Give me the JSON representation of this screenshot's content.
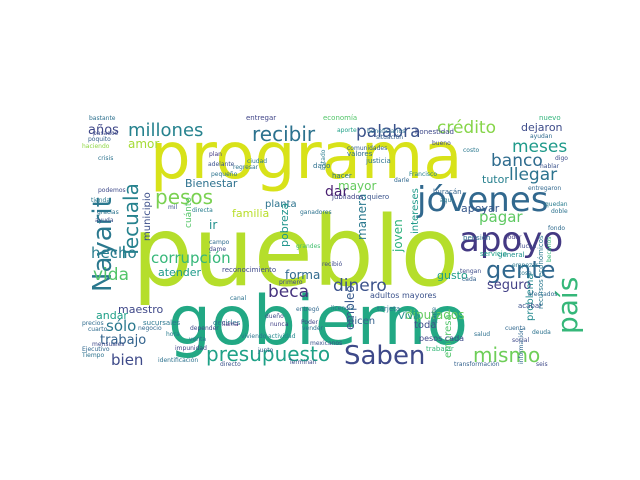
{
  "words": [
    {
      "text": "pueblo",
      "color": "#b5de2b"
    },
    {
      "text": "gobierno",
      "color": "#22a884"
    },
    {
      "text": "programa",
      "color": "#d8e219"
    },
    {
      "text": "jóvenes",
      "color": "#31688e"
    },
    {
      "text": "apoyo",
      "color": "#443983"
    },
    {
      "text": "país",
      "color": "#35b779"
    },
    {
      "text": "Nayarit",
      "color": "#2a788e"
    },
    {
      "text": "Tecuala",
      "color": "#26828e"
    },
    {
      "text": "gente",
      "color": "#31688e"
    },
    {
      "text": "Saben",
      "color": "#3e4989"
    },
    {
      "text": "presupuesto",
      "color": "#1fa187"
    },
    {
      "text": "mismo",
      "color": "#6ece58"
    },
    {
      "text": "pesos",
      "color": "#7ad151"
    },
    {
      "text": "millones",
      "color": "#26828e"
    },
    {
      "text": "recibir",
      "color": "#2c728e"
    },
    {
      "text": "palabra",
      "color": "#3b528b"
    },
    {
      "text": "crédito",
      "color": "#86d549"
    },
    {
      "text": "meses",
      "color": "#1f9a8a"
    },
    {
      "text": "banco",
      "color": "#2f6c8e"
    },
    {
      "text": "llegar",
      "color": "#2c738e"
    },
    {
      "text": "vida",
      "color": "#52c569"
    },
    {
      "text": "hecho",
      "color": "#287d8e"
    },
    {
      "text": "corrupción",
      "color": "#35b779"
    },
    {
      "text": "dinero",
      "color": "#3b528b"
    },
    {
      "text": "beca",
      "color": "#46337e"
    },
    {
      "text": "bien",
      "color": "#3e4a89"
    },
    {
      "text": "sólo",
      "color": "#2a788e"
    },
    {
      "text": "trabajo",
      "color": "#33638d"
    },
    {
      "text": "dar",
      "color": "#481f70"
    },
    {
      "text": "mayor",
      "color": "#65cb5e"
    },
    {
      "text": "pagar",
      "color": "#5ec962"
    },
    {
      "text": "seguro",
      "color": "#424086"
    },
    {
      "text": "empleo",
      "color": "#38598c"
    },
    {
      "text": "joven",
      "color": "#2db27d"
    },
    {
      "text": "diputados",
      "color": "#63cb5f"
    },
    {
      "text": "años",
      "color": "#3f4788"
    },
    {
      "text": "amor",
      "color": "#a5db36"
    },
    {
      "text": "forma",
      "color": "#30698e"
    },
    {
      "text": "dejaron",
      "color": "#3e4c8a"
    },
    {
      "text": "tutor",
      "color": "#27808e"
    },
    {
      "text": "Bienestar",
      "color": "#2d718e"
    },
    {
      "text": "municipio",
      "color": "#3c4f8a"
    },
    {
      "text": "planta",
      "color": "#2c738e"
    },
    {
      "text": "familia",
      "color": "#b8de29"
    },
    {
      "text": "ir",
      "color": "#21918c"
    },
    {
      "text": "pobreza",
      "color": "#1f948c"
    },
    {
      "text": "atender",
      "color": "#1e9b8a"
    },
    {
      "text": "andar",
      "color": "#1fa088"
    },
    {
      "text": "maestro",
      "color": "#3f4889"
    },
    {
      "text": "gusto",
      "color": "#1f9e89"
    },
    {
      "text": "intereses",
      "color": "#1f9a8a"
    },
    {
      "text": "empresa",
      "color": "#50c46a"
    },
    {
      "text": "manera",
      "color": "#2a788e"
    },
    {
      "text": "apoyar",
      "color": "#38598c"
    },
    {
      "text": "dicen",
      "color": "#34618d"
    },
    {
      "text": "toda",
      "color": "#3d4d8a"
    },
    {
      "text": "Viva",
      "color": "#21918c"
    },
    {
      "text": "problema",
      "color": "#23898e"
    },
    {
      "text": "cuánto",
      "color": "#54c568"
    },
    {
      "text": "adultos mayores",
      "color": "#3b528b"
    },
    {
      "text": "pesos cada",
      "color": "#3e4989"
    },
    {
      "text": "dado",
      "color": "#2d708e"
    },
    {
      "text": "jubilados",
      "color": "#414487"
    },
    {
      "text": "hacer",
      "color": "#2c738e"
    },
    {
      "text": "quiero",
      "color": "#3a538b"
    },
    {
      "text": "huracán",
      "color": "#33638d"
    },
    {
      "text": "pensión",
      "color": "#2f6c8e"
    },
    {
      "text": "servicio",
      "color": "#1fa088"
    },
    {
      "text": "general",
      "color": "#21918c"
    },
    {
      "text": "acabar",
      "color": "#3b528b"
    },
    {
      "text": "entregar",
      "color": "#404588"
    },
    {
      "text": "economía",
      "color": "#52c569"
    },
    {
      "text": "nuevo",
      "color": "#31b57b"
    },
    {
      "text": "ayudan",
      "color": "#2f6b8e"
    },
    {
      "text": "honestidad",
      "color": "#3e4989"
    },
    {
      "text": "beneficiarios",
      "color": "#2d708e"
    },
    {
      "text": "aporte",
      "color": "#1fa088"
    },
    {
      "text": "situación",
      "color": "#34608d"
    },
    {
      "text": "justicia",
      "color": "#2c728e"
    },
    {
      "text": "valores",
      "color": "#2e6d8e"
    },
    {
      "text": "comunidades",
      "color": "#34608d"
    },
    {
      "text": "Francisco",
      "color": "#26828e"
    },
    {
      "text": "tarjeta",
      "color": "#2c728e"
    },
    {
      "text": "reconocimiento",
      "color": "#3e4989"
    },
    {
      "text": "sucursales",
      "color": "#2a768e"
    },
    {
      "text": "decirles",
      "color": "#2b758e"
    },
    {
      "text": "actividad",
      "color": "#23888e"
    },
    {
      "text": "identificación",
      "color": "#2c718e"
    },
    {
      "text": "directo",
      "color": "#3b528b"
    },
    {
      "text": "Terminan",
      "color": "#3e4c8a"
    },
    {
      "text": "transformación",
      "color": "#34618d"
    },
    {
      "text": "trabajar",
      "color": "#35b779"
    },
    {
      "text": "viviendo",
      "color": "#2b758e"
    },
    {
      "text": "nunca",
      "color": "#424086"
    },
    {
      "text": "negocio",
      "color": "#31688e"
    },
    {
      "text": "depender",
      "color": "#3e4a89"
    },
    {
      "text": "llama",
      "color": "#46327e"
    },
    {
      "text": "campo",
      "color": "#2f6b8e"
    },
    {
      "text": "directa",
      "color": "#287c8e"
    },
    {
      "text": "grandes",
      "color": "#44bf70"
    },
    {
      "text": "primero",
      "color": "#3f4889"
    },
    {
      "text": "adelante",
      "color": "#3b528b"
    },
    {
      "text": "plan",
      "color": "#443983"
    },
    {
      "text": "regresar",
      "color": "#2c728e"
    },
    {
      "text": "ciudad",
      "color": "#2a788e"
    },
    {
      "text": "impunidad",
      "color": "#414487"
    },
    {
      "text": "vender",
      "color": "#2c718e"
    },
    {
      "text": "mensuales",
      "color": "#3e4989"
    },
    {
      "text": "Ejecutivo",
      "color": "#31688e"
    },
    {
      "text": "precios",
      "color": "#2f6c8e"
    },
    {
      "text": "Tiempo",
      "color": "#2c728e"
    },
    {
      "text": "bastante",
      "color": "#2d708e"
    },
    {
      "text": "pasados",
      "color": "#3e4c8a"
    },
    {
      "text": "poquito",
      "color": "#34608d"
    },
    {
      "text": "haciendo",
      "color": "#8fd744"
    },
    {
      "text": "crisis",
      "color": "#2c728e"
    },
    {
      "text": "podemos",
      "color": "#3e4989"
    },
    {
      "text": "tienda",
      "color": "#2a788e"
    },
    {
      "text": "gracias",
      "color": "#2c738e"
    },
    {
      "text": "ayuda",
      "color": "#3b528b"
    },
    {
      "text": "entregaron",
      "color": "#31688e"
    },
    {
      "text": "empezar",
      "color": "#2a788e"
    },
    {
      "text": "digo",
      "color": "#3e4c8a"
    },
    {
      "text": "doble",
      "color": "#2c728e"
    },
    {
      "text": "afectados",
      "color": "#31688e"
    },
    {
      "text": "seis",
      "color": "#3e4989"
    },
    {
      "text": "hablar",
      "color": "#3b528b"
    },
    {
      "text": "quedan",
      "color": "#287c8e"
    },
    {
      "text": "fondo",
      "color": "#2f6b8e"
    },
    {
      "text": "poder",
      "color": "#443983"
    },
    {
      "text": "lucha",
      "color": "#3f4889"
    },
    {
      "text": "parte",
      "color": "#2c728e"
    },
    {
      "text": "cada",
      "color": "#34608d"
    },
    {
      "text": "aquí",
      "color": "#2a788e"
    },
    {
      "text": "entregó",
      "color": "#31688e"
    },
    {
      "text": "dueño",
      "color": "#3e4c8a"
    },
    {
      "text": "Poder",
      "color": "#414487"
    },
    {
      "text": "licencia",
      "color": "#2c718e"
    },
    {
      "text": "recursos económicos",
      "color": "#2a788e"
    },
    {
      "text": "becarios",
      "color": "#35b779"
    },
    {
      "text": "información",
      "color": "#31688e"
    },
    {
      "text": "ganadores",
      "color": "#2c728e"
    },
    {
      "text": "dame",
      "color": "#3e4989"
    },
    {
      "text": "cuarto",
      "color": "#2f6c8e"
    },
    {
      "text": "pequeño",
      "color": "#2c738e"
    },
    {
      "text": "mil",
      "color": "#3b528b"
    },
    {
      "text": "Estado",
      "color": "#287c8e"
    },
    {
      "text": "tengan",
      "color": "#3e4c8a"
    },
    {
      "text": "cosa",
      "color": "#2a788e"
    },
    {
      "text": "cuenta",
      "color": "#31688e"
    },
    {
      "text": "deuda",
      "color": "#2c728e"
    },
    {
      "text": "social",
      "color": "#3e4989"
    },
    {
      "text": "salud",
      "color": "#2d708e"
    },
    {
      "text": "mexicanos",
      "color": "#3b528b"
    },
    {
      "text": "hora",
      "color": "#287c8e"
    },
    {
      "text": "venta",
      "color": "#2c718e"
    },
    {
      "text": "junto",
      "color": "#34608d"
    },
    {
      "text": "darle",
      "color": "#31688e"
    },
    {
      "text": "bueno",
      "color": "#3e4c8a"
    },
    {
      "text": "costo",
      "color": "#2a788e"
    },
    {
      "text": "canal",
      "color": "#2c728e"
    },
    {
      "text": "recibió",
      "color": "#3e4989"
    }
  ]
}
